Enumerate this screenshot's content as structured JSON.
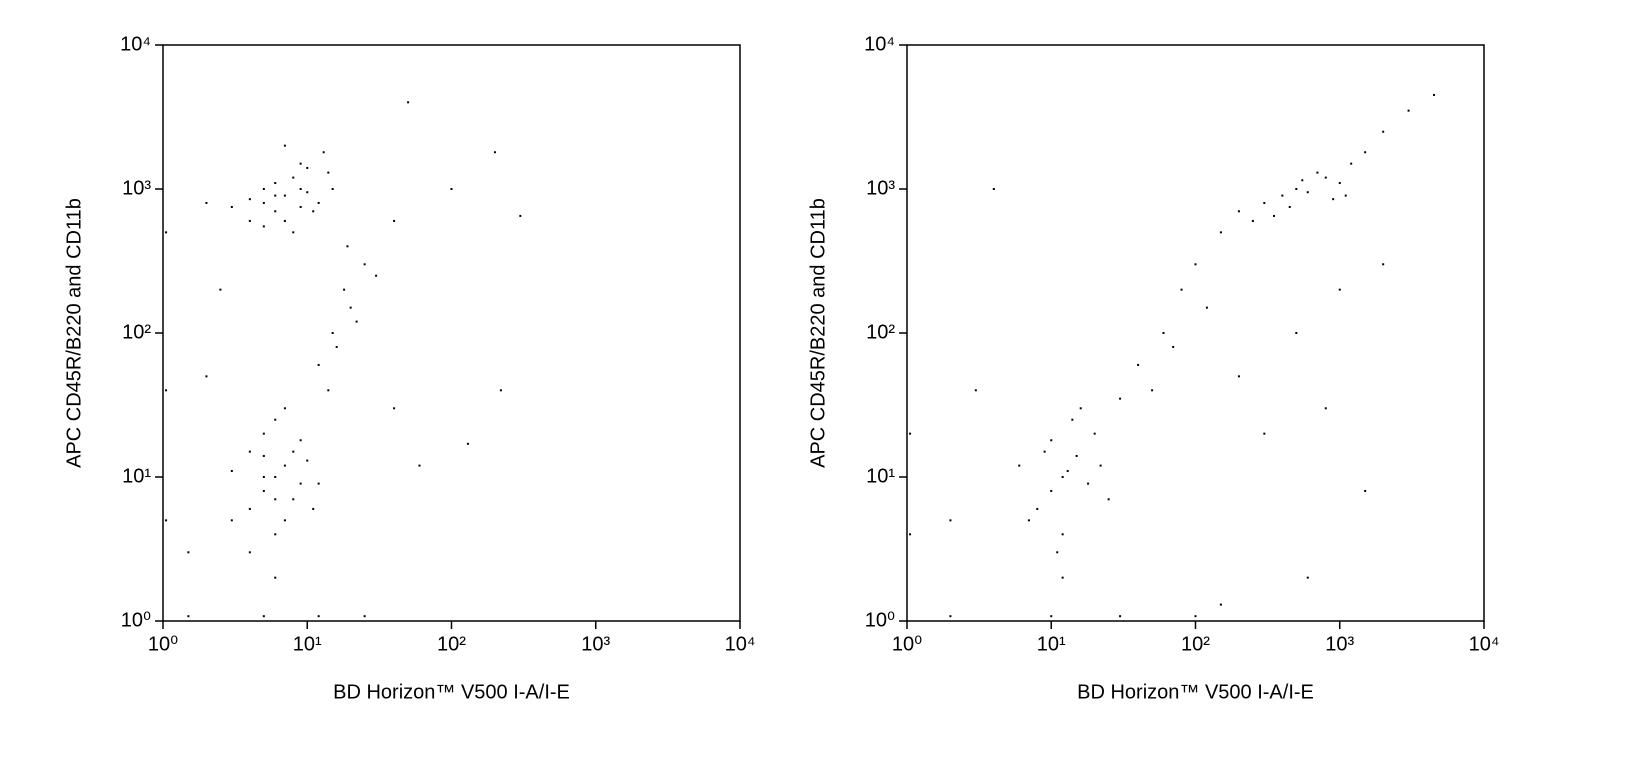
{
  "chart_data": [
    {
      "type": "scatter",
      "xlabel": "BD Horizon™ V500 I-A/I-E",
      "ylabel": "APC CD45R/B220 and CD11b",
      "xscale": "log",
      "yscale": "log",
      "color": "#000000",
      "xlim": [
        1,
        10000
      ],
      "ylim": [
        1,
        10000
      ],
      "xticks": [
        {
          "value": 1,
          "label": "10⁰"
        },
        {
          "value": 10,
          "label": "10¹"
        },
        {
          "value": 100,
          "label": "10²"
        },
        {
          "value": 1000,
          "label": "10³"
        },
        {
          "value": 10000,
          "label": "10⁴"
        }
      ],
      "yticks": [
        {
          "value": 1,
          "label": "10⁰"
        },
        {
          "value": 10,
          "label": "10¹"
        },
        {
          "value": 100,
          "label": "10²"
        },
        {
          "value": 1000,
          "label": "10³"
        },
        {
          "value": 10000,
          "label": "10⁴"
        }
      ],
      "x": [
        7,
        5,
        9,
        6,
        8,
        4,
        10,
        12,
        6,
        7,
        3,
        9,
        5,
        11,
        8,
        14,
        6,
        4,
        13,
        2,
        7,
        15,
        9,
        5,
        10,
        6,
        5,
        7,
        4,
        8,
        6,
        5,
        9,
        3,
        7,
        10,
        6,
        4,
        8,
        5,
        11,
        6,
        7,
        3,
        9,
        5,
        12,
        4,
        6,
        15,
        18,
        12,
        20,
        25,
        16,
        22,
        14,
        30,
        19,
        2,
        1.5,
        2.5,
        40,
        60,
        100,
        200,
        300,
        220,
        130,
        50,
        40,
        1.5,
        5,
        12,
        25,
        1.05,
        1.05,
        1.05
      ],
      "y": [
        900,
        800,
        1000,
        700,
        1200,
        850,
        950,
        800,
        1100,
        600,
        750,
        1500,
        1000,
        700,
        500,
        1300,
        900,
        600,
        1800,
        800,
        2000,
        1000,
        750,
        550,
        1400,
        10,
        8,
        12,
        6,
        15,
        4,
        20,
        9,
        11,
        5,
        13,
        25,
        3,
        7,
        14,
        6,
        2,
        30,
        5,
        18,
        10,
        9,
        15,
        7,
        100,
        200,
        60,
        150,
        300,
        80,
        120,
        40,
        250,
        400,
        50,
        3,
        200,
        30,
        12,
        1000,
        1800,
        650,
        40,
        17,
        4000,
        600,
        1.08,
        1.08,
        1.08,
        1.08,
        500,
        40,
        5
      ]
    },
    {
      "type": "scatter",
      "xlabel": "BD Horizon™ V500 I-A/I-E",
      "ylabel": "APC CD45R/B220 and CD11b",
      "xscale": "log",
      "yscale": "log",
      "color": "#000000",
      "xlim": [
        1,
        10000
      ],
      "ylim": [
        1,
        10000
      ],
      "xticks": [
        {
          "value": 1,
          "label": "10⁰"
        },
        {
          "value": 10,
          "label": "10¹"
        },
        {
          "value": 100,
          "label": "10²"
        },
        {
          "value": 1000,
          "label": "10³"
        },
        {
          "value": 10000,
          "label": "10⁴"
        }
      ],
      "yticks": [
        {
          "value": 1,
          "label": "10⁰"
        },
        {
          "value": 10,
          "label": "10¹"
        },
        {
          "value": 100,
          "label": "10²"
        },
        {
          "value": 1000,
          "label": "10³"
        },
        {
          "value": 10000,
          "label": "10⁴"
        }
      ],
      "x": [
        300,
        500,
        800,
        400,
        1000,
        200,
        600,
        1200,
        350,
        700,
        250,
        900,
        1500,
        450,
        2000,
        150,
        550,
        1100,
        3000,
        4500,
        12,
        10,
        15,
        8,
        20,
        12,
        9,
        18,
        6,
        14,
        11,
        25,
        13,
        7,
        16,
        10,
        22,
        12,
        40,
        60,
        80,
        100,
        50,
        120,
        30,
        70,
        200,
        500,
        1000,
        800,
        1500,
        600,
        2000,
        3,
        2,
        4,
        300,
        150,
        2,
        10,
        30,
        100,
        1.05,
        1.05
      ],
      "y": [
        800,
        1000,
        1200,
        900,
        1100,
        700,
        950,
        1500,
        650,
        1300,
        600,
        850,
        1800,
        750,
        2500,
        500,
        1150,
        900,
        3500,
        4500,
        10,
        8,
        14,
        6,
        20,
        4,
        15,
        9,
        12,
        25,
        3,
        7,
        11,
        5,
        30,
        18,
        12,
        2,
        60,
        100,
        200,
        300,
        40,
        150,
        35,
        80,
        50,
        100,
        200,
        30,
        8,
        2,
        300,
        40,
        5,
        1000,
        20,
        1.3,
        1.08,
        1.08,
        1.08,
        1.08,
        20,
        4
      ]
    }
  ]
}
